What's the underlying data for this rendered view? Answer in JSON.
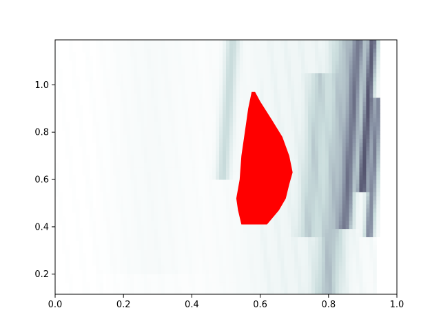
{
  "chart_data": {
    "type": "heatmap",
    "title": "",
    "xlabel": "",
    "ylabel": "",
    "xlim": [
      0.0,
      1.0
    ],
    "ylim": [
      0.115,
      1.19
    ],
    "xticks": [
      0.0,
      0.2,
      0.4,
      0.6,
      0.8,
      1.0
    ],
    "xtick_labels": [
      "0.0",
      "0.2",
      "0.4",
      "0.6",
      "0.8",
      "1.0"
    ],
    "yticks": [
      0.2,
      0.4,
      0.6,
      0.8,
      1.0
    ],
    "ytick_labels": [
      "0.2",
      "0.4",
      "0.6",
      "0.8",
      "1.0"
    ],
    "grid": false,
    "legend": "none",
    "colormap": "bone_r",
    "colors": {
      "low": "#ffffff",
      "mid": "#c9dcdc",
      "high": "#54546e",
      "highlight": "#ff0000"
    },
    "highlight_region": {
      "color": "#ff0000",
      "top_y": 0.97,
      "bottom_y": 0.41,
      "left_edge": [
        [
          0.97,
          0.575
        ],
        [
          0.9,
          0.565
        ],
        [
          0.8,
          0.555
        ],
        [
          0.7,
          0.545
        ],
        [
          0.6,
          0.54
        ],
        [
          0.52,
          0.53
        ],
        [
          0.47,
          0.535
        ],
        [
          0.41,
          0.545
        ]
      ],
      "right_edge": [
        [
          0.97,
          0.585
        ],
        [
          0.93,
          0.6
        ],
        [
          0.85,
          0.635
        ],
        [
          0.78,
          0.665
        ],
        [
          0.7,
          0.685
        ],
        [
          0.63,
          0.695
        ],
        [
          0.58,
          0.685
        ],
        [
          0.52,
          0.675
        ],
        [
          0.47,
          0.655
        ],
        [
          0.41,
          0.62
        ]
      ]
    },
    "intensity_bands": [
      {
        "x_center": 0.82,
        "y_range": [
          0.12,
          1.19
        ],
        "strength": 0.4,
        "width": 0.04
      },
      {
        "x_center": 0.86,
        "y_range": [
          0.4,
          1.19
        ],
        "strength": 0.6,
        "width": 0.02
      },
      {
        "x_center": 0.9,
        "y_range": [
          0.55,
          1.19
        ],
        "strength": 0.9,
        "width": 0.015
      },
      {
        "x_center": 0.93,
        "y_range": [
          0.36,
          0.95
        ],
        "strength": 0.7,
        "width": 0.015
      },
      {
        "x_center": 0.49,
        "y_range": [
          0.6,
          1.19
        ],
        "strength": 0.35,
        "width": 0.02
      },
      {
        "x_center": 0.75,
        "y_range": [
          0.36,
          1.05
        ],
        "strength": 0.3,
        "width": 0.03
      }
    ]
  }
}
